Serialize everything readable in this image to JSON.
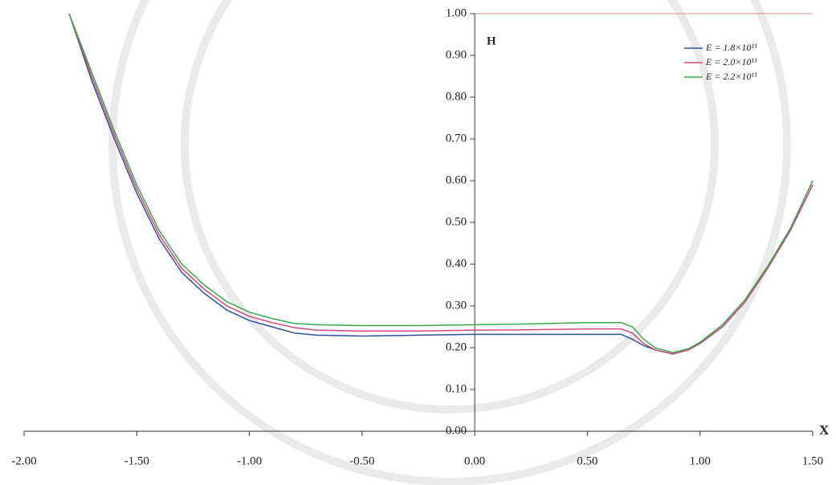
{
  "chart_data": {
    "type": "line",
    "x_label": "X",
    "y_label": "H",
    "x": [
      -1.8,
      -1.7,
      -1.6,
      -1.5,
      -1.4,
      -1.3,
      -1.2,
      -1.1,
      -1.0,
      -0.9,
      -0.8,
      -0.7,
      -0.5,
      -0.25,
      0,
      0.25,
      0.5,
      0.65,
      0.7,
      0.75,
      0.8,
      0.88,
      0.95,
      1.0,
      1.1,
      1.2,
      1.3,
      1.4,
      1.5
    ],
    "series": [
      {
        "name": "E = 1.8×10¹¹",
        "color": "#2f4f9f",
        "values": [
          1.0,
          0.84,
          0.7,
          0.57,
          0.46,
          0.38,
          0.33,
          0.29,
          0.265,
          0.25,
          0.235,
          0.23,
          0.228,
          0.23,
          0.232,
          0.232,
          0.232,
          0.232,
          0.22,
          0.205,
          0.195,
          0.185,
          0.195,
          0.21,
          0.25,
          0.31,
          0.39,
          0.48,
          0.59
        ]
      },
      {
        "name": "E = 2.0×10¹¹",
        "color": "#d04a7a",
        "values": [
          1.0,
          0.85,
          0.71,
          0.58,
          0.47,
          0.39,
          0.34,
          0.3,
          0.275,
          0.26,
          0.248,
          0.242,
          0.24,
          0.24,
          0.242,
          0.243,
          0.245,
          0.245,
          0.235,
          0.21,
          0.195,
          0.185,
          0.195,
          0.21,
          0.25,
          0.31,
          0.39,
          0.48,
          0.59
        ]
      },
      {
        "name": "E = 2.2×10¹¹",
        "color": "#3aa84a",
        "values": [
          1.0,
          0.86,
          0.72,
          0.59,
          0.48,
          0.4,
          0.35,
          0.31,
          0.285,
          0.27,
          0.258,
          0.255,
          0.253,
          0.253,
          0.255,
          0.257,
          0.26,
          0.26,
          0.25,
          0.22,
          0.2,
          0.188,
          0.198,
          0.213,
          0.255,
          0.315,
          0.395,
          0.485,
          0.6
        ]
      }
    ],
    "xlim": [
      -2,
      1.5
    ],
    "ylim": [
      0,
      1
    ],
    "xticks": [
      {
        "value": -2,
        "label": "-2.00"
      },
      {
        "value": -1.5,
        "label": "-1.50"
      },
      {
        "value": -1,
        "label": "-1.00"
      },
      {
        "value": -0.5,
        "label": "-0.50"
      },
      {
        "value": 0,
        "label": "0.00"
      },
      {
        "value": 0.5,
        "label": "0.50"
      },
      {
        "value": 1,
        "label": "1.00"
      },
      {
        "value": 1.5,
        "label": "1.50"
      }
    ],
    "yticks": [
      {
        "value": 0,
        "label": "0.00"
      },
      {
        "value": 0.1,
        "label": "0.10"
      },
      {
        "value": 0.2,
        "label": "0.20"
      },
      {
        "value": 0.3,
        "label": "0.30"
      },
      {
        "value": 0.4,
        "label": "0.40"
      },
      {
        "value": 0.5,
        "label": "0.50"
      },
      {
        "value": 0.6,
        "label": "0.60"
      },
      {
        "value": 0.7,
        "label": "0.70"
      },
      {
        "value": 0.8,
        "label": "0.80"
      },
      {
        "value": 0.9,
        "label": "0.90"
      },
      {
        "value": 1,
        "label": "1.00"
      }
    ],
    "legend_position": "upper right",
    "grid": false
  }
}
